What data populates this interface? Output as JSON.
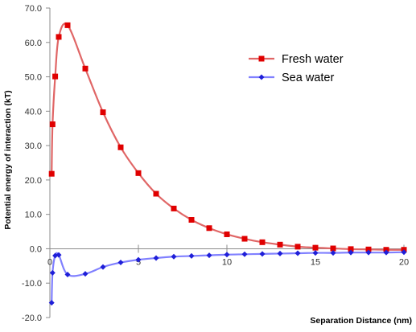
{
  "chart_data": {
    "type": "line",
    "title": "",
    "xlabel": "Separation Distance (nm)",
    "ylabel": "Potential energy of interaction (kT)",
    "xlim": [
      0,
      20
    ],
    "ylim": [
      -20,
      70
    ],
    "x_ticks": [
      0,
      5,
      10,
      15,
      20
    ],
    "x_tick_labels": [
      "0",
      "5",
      "10",
      "15",
      "20"
    ],
    "y_ticks": [
      70,
      60,
      50,
      40,
      30,
      20,
      10,
      0,
      -10,
      -20
    ],
    "y_tick_labels": [
      "70.0",
      "60.0",
      "50.0",
      "40.0",
      "30.0",
      "20.0",
      "10.0",
      "0.0",
      "-10.0",
      "-20.0"
    ],
    "grid": false,
    "legend_position": "top-right",
    "series": [
      {
        "name": "Fresh water",
        "color": "#e06666",
        "marker_color": "#e00000",
        "marker": "square",
        "x": [
          0.1,
          0.15,
          0.3,
          0.5,
          1,
          2,
          3,
          4,
          5,
          6,
          7,
          8,
          9,
          10,
          11,
          12,
          13,
          14,
          15,
          16,
          17,
          18,
          19,
          20
        ],
        "y": [
          21.8,
          36.2,
          50.1,
          61.6,
          65.0,
          52.4,
          39.7,
          29.5,
          22.0,
          16.0,
          11.7,
          8.4,
          6.0,
          4.2,
          2.9,
          1.9,
          1.2,
          0.6,
          0.3,
          0.1,
          -0.1,
          -0.2,
          -0.3,
          -0.3
        ]
      },
      {
        "name": "Sea water",
        "color": "#8080ff",
        "marker_color": "#1f1fd8",
        "marker": "diamond",
        "x": [
          0.1,
          0.15,
          0.3,
          0.5,
          1,
          2,
          3,
          4,
          5,
          6,
          7,
          8,
          9,
          10,
          11,
          12,
          13,
          14,
          15,
          16,
          17,
          18,
          19,
          20
        ],
        "y": [
          -15.7,
          -7.0,
          -2.0,
          -1.8,
          -7.5,
          -7.3,
          -5.3,
          -4.0,
          -3.2,
          -2.7,
          -2.3,
          -2.1,
          -1.9,
          -1.7,
          -1.6,
          -1.5,
          -1.4,
          -1.3,
          -1.2,
          -1.2,
          -1.1,
          -1.1,
          -1.1,
          -1.0
        ]
      }
    ]
  }
}
